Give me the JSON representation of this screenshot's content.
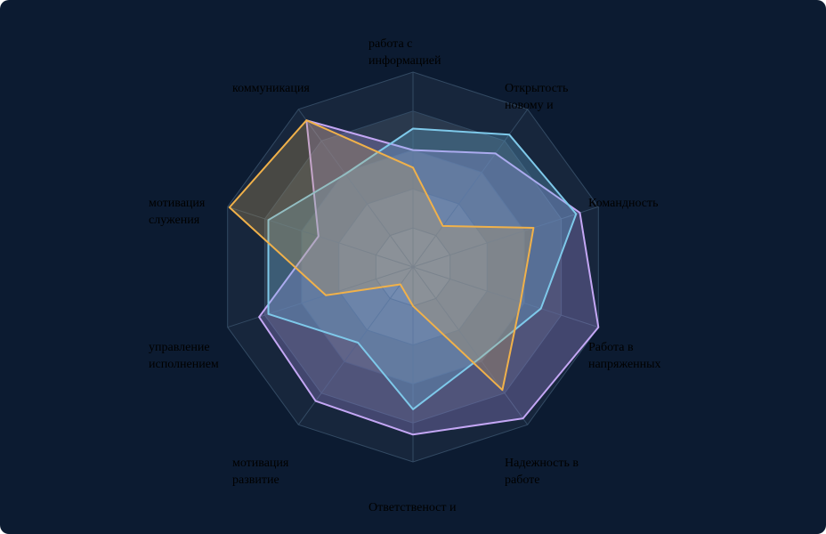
{
  "colors": {
    "background": "#0c1b31",
    "grid_stroke": "#334a63",
    "grid_fill_light": "#6b7a88",
    "grid_fill_dark": "#2a3d52",
    "label_text": "#000000"
  },
  "chart_data": {
    "type": "radar",
    "title": "",
    "axes": [
      "работа с информацией",
      "Открытость новому и инициативност",
      "Командность",
      "Работа в напряженных условиях",
      "Надежность в работе",
      "Ответственост и",
      "мотивация развитие",
      "управление исполнением",
      "мотивация служения",
      "коммуникация"
    ],
    "rlim": [
      0,
      10
    ],
    "grid_levels": 5,
    "grid": true,
    "legend": "none",
    "series": [
      {
        "color": "#c4a7f5",
        "fill": "#b59cf0",
        "values": [
          6,
          7.2,
          9,
          10,
          9.6,
          8.6,
          8.5,
          8.3,
          5.1,
          9.3
        ]
      },
      {
        "color": "#7ec9ea",
        "fill": "#6db8de",
        "values": [
          7.1,
          8.4,
          8.8,
          6.9,
          5.8,
          7.3,
          4.8,
          7.8,
          7.8,
          5.9
        ]
      },
      {
        "color": "#f0b14a",
        "fill": "#c9a25a",
        "values": [
          5.1,
          2.6,
          6.5,
          5.8,
          7.8,
          2,
          1.1,
          4.7,
          9.9,
          9.3
        ]
      }
    ]
  }
}
